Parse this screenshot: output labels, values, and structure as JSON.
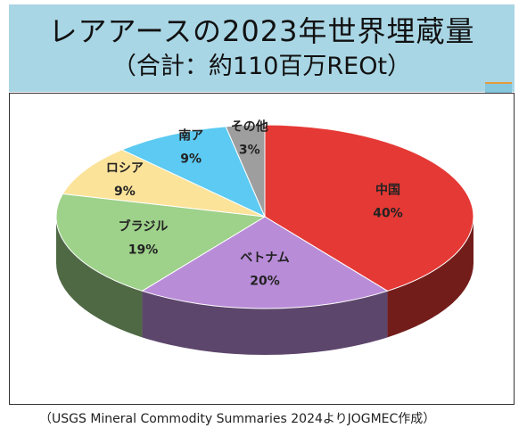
{
  "title": {
    "line1": "レアアースの2023年世界埋蔵量",
    "line2": "（合計：約110百万REOt）"
  },
  "source": "（USGS Mineral Commodity Summaries 2024よりJOGMEC作成）",
  "chart_data": {
    "type": "pie",
    "slices": [
      {
        "label": "中国",
        "value": 40,
        "value_label": "40%",
        "color": "#e53935"
      },
      {
        "label": "ベトナム",
        "value": 20,
        "value_label": "20%",
        "color": "#b98cd8"
      },
      {
        "label": "ブラジル",
        "value": 19,
        "value_label": "19%",
        "color": "#9ed18a"
      },
      {
        "label": "ロシア",
        "value": 9,
        "value_label": "9%",
        "color": "#fce39a"
      },
      {
        "label": "南ア",
        "value": 9,
        "value_label": "9%",
        "color": "#5ccaf2"
      },
      {
        "label": "その他",
        "value": 3,
        "value_label": "3%",
        "color": "#9e9e9e"
      }
    ]
  }
}
